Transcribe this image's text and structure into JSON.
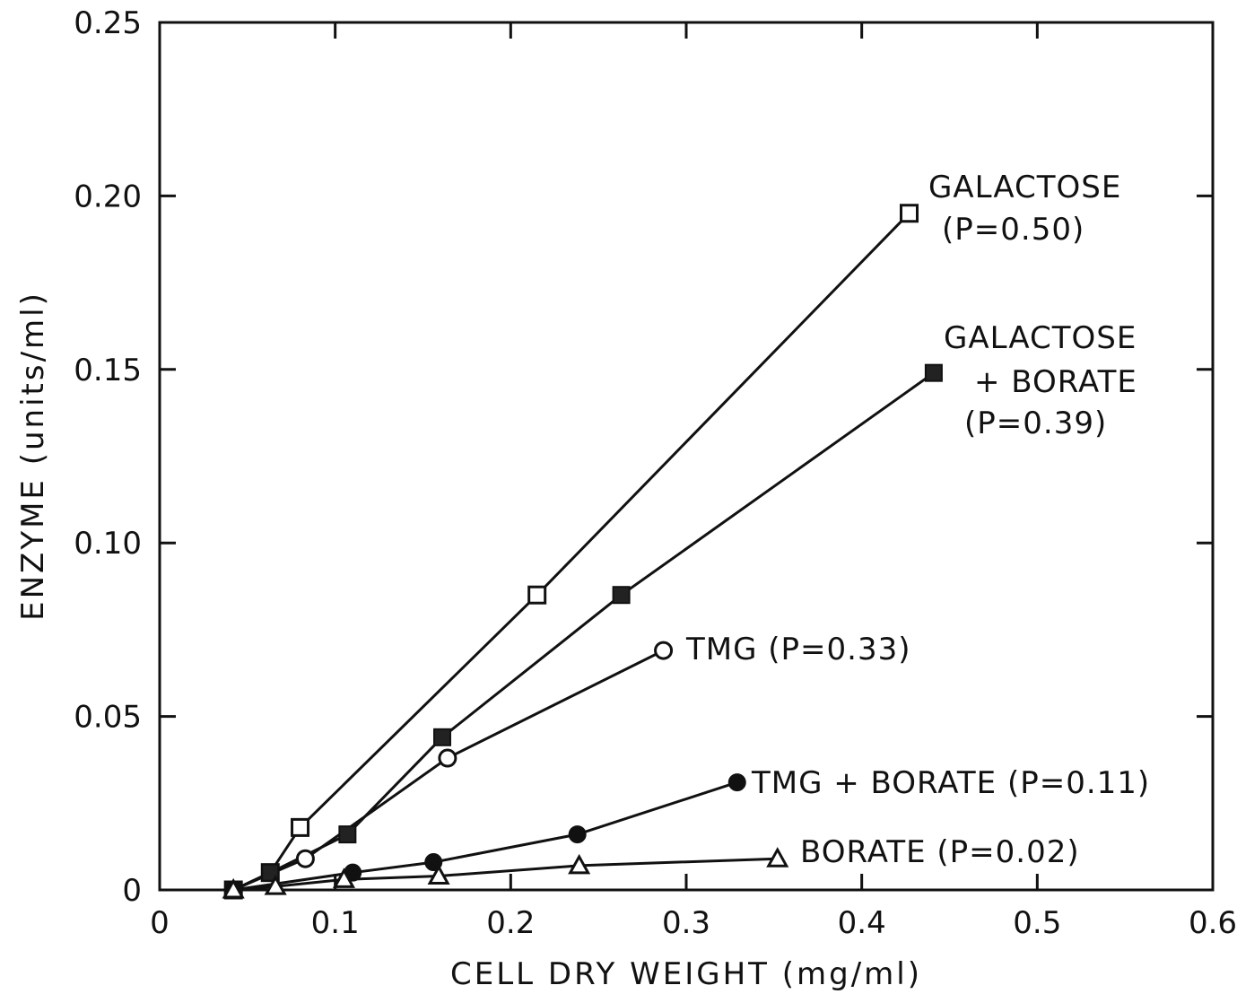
{
  "chart_data": {
    "type": "line",
    "title": "",
    "xlabel": "CELL DRY WEIGHT (mg/ml)",
    "ylabel": "ENZYME (units/ml)",
    "xlim": [
      0,
      0.6
    ],
    "ylim": [
      0,
      0.25
    ],
    "x_ticks": [
      "0",
      "0.1",
      "0.2",
      "0.3",
      "0.4",
      "0.5",
      "0.6"
    ],
    "y_ticks": [
      "0",
      "0.05",
      "0.10",
      "0.15",
      "0.20",
      "0.25"
    ],
    "grid": false,
    "legend": "none",
    "series": [
      {
        "label_lines": [
          "GALACTOSE",
          "(P=0.50)"
        ],
        "marker": "open-square",
        "points": [
          [
            0.042,
            0.0
          ],
          [
            0.063,
            0.005
          ],
          [
            0.08,
            0.018
          ],
          [
            0.215,
            0.085
          ],
          [
            0.427,
            0.195
          ]
        ]
      },
      {
        "label_lines": [
          "GALACTOSE",
          "+ BORATE",
          "(P=0.39)"
        ],
        "marker": "filled-square",
        "points": [
          [
            0.042,
            0.0
          ],
          [
            0.063,
            0.005
          ],
          [
            0.107,
            0.016
          ],
          [
            0.161,
            0.044
          ],
          [
            0.263,
            0.085
          ],
          [
            0.441,
            0.149
          ]
        ]
      },
      {
        "label_lines": [
          "TMG (P=0.33)"
        ],
        "marker": "open-circle",
        "points": [
          [
            0.042,
            0.0
          ],
          [
            0.083,
            0.009
          ],
          [
            0.164,
            0.038
          ],
          [
            0.287,
            0.069
          ]
        ]
      },
      {
        "label_lines": [
          "TMG + BORATE (P=0.11)"
        ],
        "marker": "filled-circle",
        "points": [
          [
            0.042,
            0.0
          ],
          [
            0.11,
            0.005
          ],
          [
            0.156,
            0.008
          ],
          [
            0.238,
            0.016
          ],
          [
            0.329,
            0.031
          ]
        ]
      },
      {
        "label_lines": [
          "BORATE (P=0.02)"
        ],
        "marker": "open-triangle",
        "points": [
          [
            0.042,
            0.0
          ],
          [
            0.066,
            0.001
          ],
          [
            0.105,
            0.003
          ],
          [
            0.159,
            0.004
          ],
          [
            0.239,
            0.007
          ],
          [
            0.352,
            0.009
          ]
        ]
      }
    ]
  }
}
